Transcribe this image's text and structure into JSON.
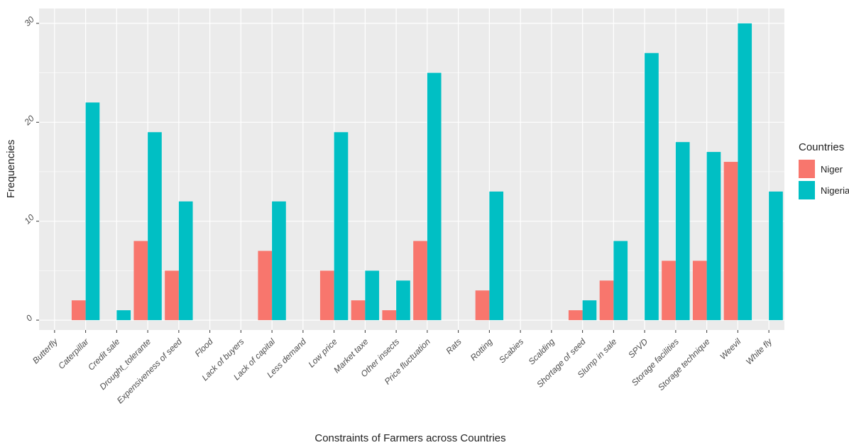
{
  "chart_data": {
    "type": "bar",
    "xlabel": "Constraints of Farmers across Countries",
    "ylabel": "Frequencies",
    "ylim": [
      -1,
      31.5
    ],
    "yticks": [
      0,
      10,
      20,
      30
    ],
    "grid": true,
    "legend": {
      "title": "Countries",
      "position": "right"
    },
    "categories": [
      "Butterfly",
      "Caterpillar",
      "Credit sale",
      "Drought_tolerante",
      "Expensiveness of seed",
      "Flood",
      "Lack of buyers",
      "Lack of capital",
      "Less demand",
      "Low price",
      "Market taxe",
      "Other insects",
      "Price fluctuation",
      "Rats",
      "Rotting",
      "Scabies",
      "Scalding",
      "Shortage of seed",
      "Slump in sale",
      "SPVD",
      "Storage facilities",
      "Storage technique",
      "Weevil",
      "White fly"
    ],
    "series": [
      {
        "name": "Niger",
        "color": "#f8766d",
        "values": [
          0,
          2,
          0,
          8,
          5,
          0,
          0,
          7,
          0,
          5,
          2,
          1,
          8,
          0,
          3,
          0,
          0,
          1,
          4,
          0,
          6,
          6,
          16,
          0
        ]
      },
      {
        "name": "Nigeria",
        "color": "#00bfc4",
        "values": [
          0,
          22,
          1,
          19,
          12,
          0,
          0,
          12,
          0,
          19,
          5,
          4,
          25,
          0,
          13,
          0,
          0,
          2,
          8,
          27,
          18,
          17,
          30,
          13
        ]
      }
    ]
  }
}
